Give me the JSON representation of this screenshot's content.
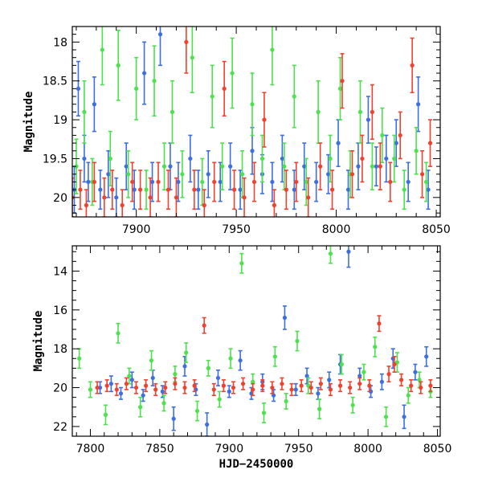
{
  "chart_data": [
    {
      "type": "scatter",
      "title": "",
      "xlabel": "",
      "ylabel": "Magnitude",
      "xlim": [
        7868,
        8052
      ],
      "ylim": [
        20.25,
        17.8
      ],
      "y_inverted": true,
      "x_ticks": [
        7900,
        7950,
        8000,
        8050
      ],
      "y_ticks": [
        18,
        18.5,
        19,
        19.5,
        20
      ],
      "x_tick_labels": [
        "7900",
        "7950",
        "8000",
        "8050"
      ],
      "y_tick_labels": [
        "18",
        "18.5",
        "19",
        "19.5",
        "20"
      ],
      "error_bars": true,
      "series": [
        {
          "color": "#3d6fe0",
          "x": [
            7869,
            7871,
            7874,
            7876,
            7879,
            7882,
            7886,
            7890,
            7895,
            7899,
            7904,
            7908,
            7912,
            7917,
            7921,
            7927,
            7931,
            7936,
            7942,
            7947,
            7952,
            7958,
            7963,
            7968,
            7973,
            7979,
            7984,
            7990,
            7996,
            8001,
            8006,
            8011,
            8016,
            8020,
            8025,
            8030,
            8036,
            8041,
            8046
          ],
          "y": [
            19.9,
            18.6,
            19.5,
            19.8,
            18.8,
            19.9,
            19.7,
            20.0,
            19.6,
            19.9,
            18.4,
            19.8,
            17.9,
            19.6,
            19.8,
            19.5,
            19.9,
            19.7,
            19.8,
            19.6,
            19.9,
            19.4,
            19.7,
            19.8,
            19.5,
            19.9,
            19.6,
            19.8,
            19.7,
            19.3,
            19.9,
            19.6,
            19.0,
            19.6,
            19.5,
            19.3,
            19.8,
            18.8,
            19.9
          ],
          "err": [
            0.3,
            0.35,
            0.3,
            0.25,
            0.35,
            0.25,
            0.3,
            0.25,
            0.3,
            0.25,
            0.4,
            0.25,
            0.4,
            0.3,
            0.25,
            0.3,
            0.25,
            0.3,
            0.25,
            0.3,
            0.25,
            0.3,
            0.25,
            0.25,
            0.3,
            0.25,
            0.3,
            0.25,
            0.25,
            0.3,
            0.25,
            0.3,
            0.3,
            0.25,
            0.3,
            0.3,
            0.25,
            0.35,
            0.25
          ]
        },
        {
          "color": "#4be24b",
          "x": [
            7870,
            7874,
            7878,
            7883,
            7887,
            7891,
            7896,
            7900,
            7905,
            7909,
            7914,
            7918,
            7923,
            7928,
            7933,
            7938,
            7943,
            7948,
            7953,
            7958,
            7963,
            7968,
            7974,
            7979,
            7985,
            7991,
            7997,
            8002,
            8007,
            8012,
            8018,
            8023,
            8029,
            8034,
            8040,
            8045
          ],
          "y": [
            19.6,
            18.9,
            19.8,
            18.1,
            19.5,
            18.3,
            19.7,
            18.6,
            19.9,
            18.5,
            19.6,
            18.9,
            19.7,
            18.2,
            19.8,
            18.7,
            19.6,
            18.4,
            19.7,
            18.8,
            19.5,
            18.1,
            19.6,
            18.7,
            19.8,
            18.9,
            19.5,
            18.6,
            19.7,
            18.9,
            19.6,
            19.2,
            19.5,
            19.9,
            19.4,
            19.8
          ],
          "err": [
            0.35,
            0.4,
            0.3,
            0.45,
            0.35,
            0.45,
            0.3,
            0.4,
            0.25,
            0.45,
            0.3,
            0.4,
            0.3,
            0.45,
            0.3,
            0.4,
            0.3,
            0.45,
            0.3,
            0.4,
            0.3,
            0.45,
            0.3,
            0.4,
            0.3,
            0.4,
            0.3,
            0.4,
            0.3,
            0.4,
            0.3,
            0.35,
            0.3,
            0.25,
            0.3,
            0.25
          ]
        },
        {
          "color": "#f0412e",
          "x": [
            7868,
            7872,
            7875,
            7879,
            7884,
            7888,
            7893,
            7898,
            7902,
            7907,
            7911,
            7916,
            7920,
            7925,
            7929,
            7934,
            7939,
            7944,
            7949,
            7954,
            7959,
            7964,
            7969,
            7975,
            7980,
            7986,
            7992,
            7998,
            8003,
            8008,
            8013,
            8018,
            8022,
            8027,
            8032,
            8038,
            8043,
            8047
          ],
          "y": [
            20.0,
            19.9,
            20.1,
            19.8,
            20.0,
            19.9,
            20.1,
            19.8,
            19.9,
            20.0,
            19.8,
            19.9,
            20.0,
            18.0,
            19.9,
            20.1,
            19.8,
            18.6,
            19.9,
            20.0,
            19.8,
            19.0,
            20.1,
            19.9,
            19.8,
            20.0,
            19.6,
            19.9,
            18.5,
            19.7,
            19.5,
            18.9,
            19.6,
            19.8,
            19.2,
            18.3,
            19.7,
            19.3
          ],
          "err": [
            0.25,
            0.25,
            0.2,
            0.25,
            0.25,
            0.25,
            0.2,
            0.25,
            0.25,
            0.25,
            0.25,
            0.25,
            0.25,
            0.4,
            0.25,
            0.2,
            0.25,
            0.35,
            0.25,
            0.25,
            0.25,
            0.35,
            0.2,
            0.25,
            0.25,
            0.25,
            0.3,
            0.25,
            0.35,
            0.3,
            0.3,
            0.35,
            0.3,
            0.25,
            0.3,
            0.35,
            0.3,
            0.3
          ]
        }
      ]
    },
    {
      "type": "scatter",
      "title": "",
      "xlabel": "HJD−2450000",
      "ylabel": "Magnitude",
      "xlim": [
        7787,
        8052
      ],
      "ylim": [
        22.5,
        12.7
      ],
      "y_inverted": true,
      "x_ticks": [
        7800,
        7850,
        7900,
        7950,
        8000,
        8050
      ],
      "y_ticks": [
        14,
        16,
        18,
        20,
        22
      ],
      "x_tick_labels": [
        "7800",
        "7850",
        "7900",
        "7950",
        "8000",
        "8050"
      ],
      "y_tick_labels": [
        "14",
        "16",
        "18",
        "20",
        "22"
      ],
      "error_bars": true,
      "series": [
        {
          "color": "#3d6fe0",
          "x": [
            7807,
            7815,
            7822,
            7830,
            7838,
            7845,
            7852,
            7860,
            7868,
            7876,
            7884,
            7892,
            7900,
            7908,
            7916,
            7924,
            7932,
            7940,
            7948,
            7956,
            7964,
            7972,
            7980,
            7986,
            7994,
            8002,
            8010,
            8018,
            8026,
            8034,
            8042
          ],
          "y": [
            20.0,
            19.8,
            20.3,
            19.6,
            20.4,
            19.5,
            20.2,
            21.6,
            18.9,
            20.1,
            21.9,
            19.5,
            20.2,
            18.6,
            20.3,
            19.7,
            20.4,
            16.4,
            20.1,
            19.4,
            20.3,
            19.6,
            18.8,
            13.0,
            19.4,
            20.2,
            19.7,
            18.5,
            21.5,
            19.2,
            18.4
          ],
          "err": [
            0.3,
            0.4,
            0.3,
            0.4,
            0.3,
            0.4,
            0.3,
            0.6,
            0.5,
            0.3,
            0.6,
            0.4,
            0.3,
            0.5,
            0.3,
            0.4,
            0.3,
            0.6,
            0.3,
            0.4,
            0.3,
            0.4,
            0.5,
            0.8,
            0.4,
            0.3,
            0.4,
            0.5,
            0.6,
            0.4,
            0.5
          ]
        },
        {
          "color": "#4be24b",
          "x": [
            7792,
            7800,
            7811,
            7820,
            7828,
            7836,
            7844,
            7853,
            7861,
            7869,
            7877,
            7885,
            7893,
            7901,
            7909,
            7917,
            7925,
            7933,
            7941,
            7949,
            7957,
            7965,
            7973,
            7981,
            7989,
            7997,
            8005,
            8013,
            8021,
            8029,
            8037,
            8045
          ],
          "y": [
            18.5,
            20.1,
            21.4,
            17.2,
            19.4,
            21.0,
            18.6,
            20.8,
            19.3,
            18.2,
            21.2,
            19.0,
            20.6,
            18.5,
            13.6,
            19.7,
            21.3,
            18.4,
            20.7,
            17.6,
            19.9,
            21.1,
            13.1,
            18.8,
            20.9,
            19.2,
            17.9,
            21.5,
            18.7,
            20.4,
            19.6,
            20.2
          ],
          "err": [
            0.5,
            0.4,
            0.5,
            0.5,
            0.4,
            0.5,
            0.5,
            0.4,
            0.4,
            0.5,
            0.5,
            0.4,
            0.4,
            0.5,
            0.5,
            0.4,
            0.5,
            0.5,
            0.4,
            0.5,
            0.4,
            0.5,
            0.5,
            0.5,
            0.4,
            0.4,
            0.5,
            0.5,
            0.5,
            0.4,
            0.4,
            0.3
          ]
        },
        {
          "color": "#f0412e",
          "x": [
            7805,
            7812,
            7819,
            7826,
            7833,
            7840,
            7847,
            7854,
            7861,
            7868,
            7875,
            7882,
            7889,
            7896,
            7903,
            7910,
            7917,
            7924,
            7931,
            7938,
            7945,
            7952,
            7959,
            7966,
            7973,
            7980,
            7987,
            7994,
            8001,
            8008,
            8015,
            8019,
            8024,
            8031,
            8038,
            8045
          ],
          "y": [
            20.0,
            19.9,
            20.1,
            19.8,
            20.0,
            19.9,
            20.1,
            20.0,
            19.8,
            20.0,
            19.9,
            16.8,
            20.1,
            19.9,
            20.0,
            19.8,
            20.1,
            19.9,
            20.0,
            19.8,
            20.1,
            19.9,
            20.0,
            19.8,
            20.1,
            19.9,
            20.0,
            19.8,
            19.9,
            16.7,
            19.3,
            18.8,
            19.6,
            19.9,
            20.0,
            19.9
          ],
          "err": [
            0.3,
            0.3,
            0.3,
            0.3,
            0.3,
            0.3,
            0.3,
            0.3,
            0.3,
            0.3,
            0.3,
            0.4,
            0.3,
            0.3,
            0.3,
            0.3,
            0.3,
            0.3,
            0.3,
            0.3,
            0.3,
            0.3,
            0.3,
            0.3,
            0.3,
            0.3,
            0.3,
            0.3,
            0.3,
            0.4,
            0.4,
            0.4,
            0.3,
            0.3,
            0.3,
            0.3
          ]
        }
      ]
    }
  ]
}
